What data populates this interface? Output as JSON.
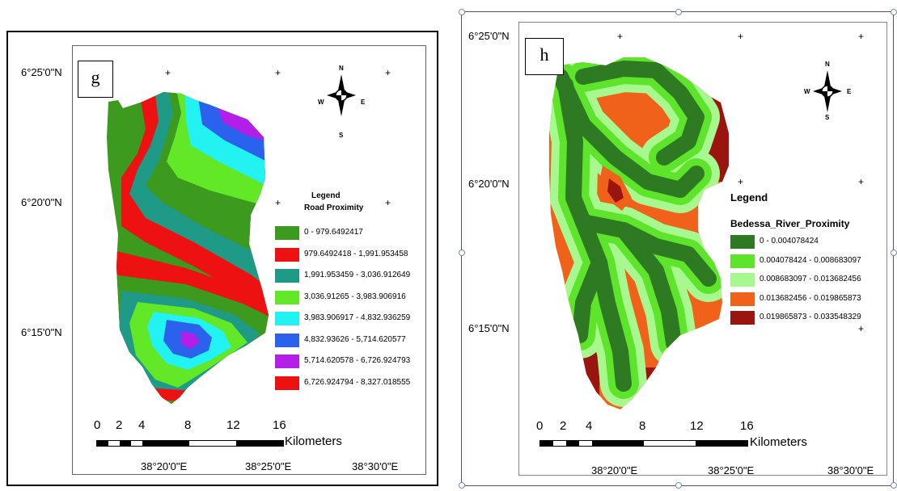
{
  "panels": {
    "g": {
      "label": "g",
      "lat_labels": [
        "6°25'0\"N",
        "6°20'0\"N",
        "6°15'0\"N"
      ],
      "lon_labels": [
        "38°20'0\"E",
        "38°25'0\"E",
        "38°30'0\"E"
      ],
      "legend_title": "Legend",
      "legend_subtitle": "Road Proximity",
      "legend": [
        {
          "label": "0 - 979.6492417",
          "color": "#3c9a1e"
        },
        {
          "label": "979.6492418 - 1,991.953458",
          "color": "#ee1111"
        },
        {
          "label": "1,991.953459 - 3,036.912649",
          "color": "#1e9a86"
        },
        {
          "label": "3,036.91265 - 3,983.906916",
          "color": "#62e827"
        },
        {
          "label": "3,983.906917 - 4,832.936259",
          "color": "#22f2f2"
        },
        {
          "label": "4,832.93626 - 5,714.620577",
          "color": "#2a62ee"
        },
        {
          "label": "5,714.620578 - 6,726.924793",
          "color": "#b41ee8"
        },
        {
          "label": "6,726.924794 - 8,327.018555",
          "color": "#ee1111"
        }
      ],
      "scale_numbers": [
        "0",
        "2",
        "4",
        "8",
        "12",
        "16"
      ],
      "scale_unit": "Kilometers",
      "compass": {
        "n": "N",
        "s": "S",
        "e": "E",
        "w": "W"
      }
    },
    "h": {
      "label": "h",
      "lat_labels": [
        "6°25'0\"N",
        "6°20'0\"N",
        "6°15'0\"N"
      ],
      "lon_labels": [
        "38°20'0\"E",
        "38°25'0\"E",
        "38°30'0\"E"
      ],
      "legend_title": "Legend",
      "legend_subtitle": "Bedessa_River_Proximity",
      "legend": [
        {
          "label": "0 - 0.004078424",
          "color": "#2e7a22"
        },
        {
          "label": "0.004078424 - 0.008683097",
          "color": "#5ee42a"
        },
        {
          "label": "0.008683097 - 0.013682456",
          "color": "#a8f890"
        },
        {
          "label": "0.013682456 - 0.019865873",
          "color": "#f0621a"
        },
        {
          "label": "0.019865873 - 0.033548329",
          "color": "#9a1410"
        }
      ],
      "scale_numbers": [
        "0",
        "2",
        "4",
        "8",
        "12",
        "16"
      ],
      "scale_unit": "Kilometers",
      "compass": {
        "n": "N",
        "s": "S",
        "e": "E",
        "w": "W"
      }
    }
  }
}
